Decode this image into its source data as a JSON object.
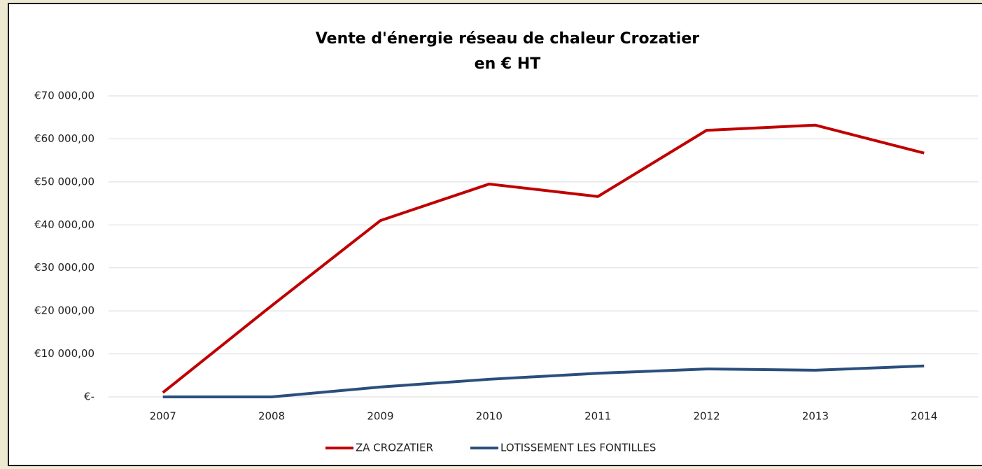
{
  "chart_data": {
    "type": "line",
    "title": "Vente d'énergie réseau de chaleur Crozatier",
    "subtitle": "en € HT",
    "categories": [
      "2007",
      "2008",
      "2009",
      "2010",
      "2011",
      "2012",
      "2013",
      "2014"
    ],
    "series": [
      {
        "name": "ZA CROZATIER",
        "color": "#c00000",
        "values": [
          1000,
          21200,
          41000,
          49500,
          46600,
          62000,
          63200,
          56700
        ]
      },
      {
        "name": "LOTISSEMENT LES FONTILLES",
        "color": "#2a4f7c",
        "values": [
          0,
          0,
          2300,
          4100,
          5500,
          6500,
          6200,
          7200
        ]
      }
    ],
    "ylim": [
      0,
      70000
    ],
    "yticks": [
      {
        "value": 0,
        "label": "€-"
      },
      {
        "value": 10000,
        "label": "€10 000,00"
      },
      {
        "value": 20000,
        "label": "€20 000,00"
      },
      {
        "value": 30000,
        "label": "€30 000,00"
      },
      {
        "value": 40000,
        "label": "€40 000,00"
      },
      {
        "value": 50000,
        "label": "€50 000,00"
      },
      {
        "value": 60000,
        "label": "€60 000,00"
      },
      {
        "value": 70000,
        "label": "€70 000,00"
      }
    ],
    "grid": true,
    "legend": "bottom"
  }
}
